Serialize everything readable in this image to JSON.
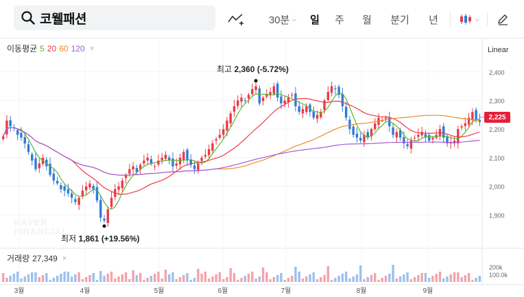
{
  "search": {
    "stock_name": "코웰패션"
  },
  "toolbar": {
    "period_select": "30분",
    "tabs": [
      {
        "label": "일",
        "active": true
      },
      {
        "label": "주",
        "active": false
      },
      {
        "label": "월",
        "active": false
      },
      {
        "label": "분기",
        "active": false
      },
      {
        "label": "년",
        "active": false
      }
    ]
  },
  "indicators": {
    "ma_label": "이동평균",
    "ma_periods": [
      {
        "label": "5",
        "color": "#5cb32f"
      },
      {
        "label": "20",
        "color": "#ea3b45"
      },
      {
        "label": "60",
        "color": "#f08a24"
      },
      {
        "label": "120",
        "color": "#a35ad8"
      }
    ],
    "close_symbol": "×"
  },
  "scale_mode": "Linear",
  "price_axis": {
    "ticks": [
      "2,400",
      "2,300",
      "2,200",
      "2,100",
      "2,000",
      "1,900"
    ]
  },
  "volume_axis": {
    "ticks": [
      "200k",
      "100.0k"
    ]
  },
  "current_price": "2,225",
  "annotations": {
    "high": {
      "label": "최고",
      "value": "2,360",
      "change": "(-5.72%)"
    },
    "low": {
      "label": "최저",
      "value": "1,861",
      "change": "(+19.56%)"
    }
  },
  "volume": {
    "label": "거래량",
    "value": "27,349"
  },
  "x_axis": {
    "months": [
      "3월",
      "4월",
      "5월",
      "6월",
      "7월",
      "8월",
      "9월"
    ]
  },
  "watermark": {
    "line1": "NAVER",
    "line2": "FINANCIAL"
  },
  "colors": {
    "up": "#ea3b45",
    "down": "#2f7bd8",
    "accent": "#e5203a"
  },
  "chart_data": {
    "type": "candlestick",
    "x_start": "2024-02-26",
    "ylim": [
      1800,
      2450
    ],
    "closes": [
      2175,
      2230,
      2210,
      2205,
      2180,
      2170,
      2150,
      2120,
      2090,
      2060,
      2080,
      2100,
      2070,
      2040,
      2020,
      2010,
      1990,
      1985,
      1975,
      1960,
      1945,
      1960,
      1985,
      2000,
      2010,
      1990,
      1950,
      1890,
      1880,
      1920,
      1960,
      1990,
      2000,
      2020,
      2040,
      2060,
      2070,
      2050,
      2075,
      2090,
      2100,
      2080,
      2070,
      2090,
      2100,
      2110,
      2090,
      2070,
      2080,
      2100,
      2120,
      2090,
      2075,
      2060,
      2080,
      2100,
      2110,
      2130,
      2150,
      2165,
      2180,
      2200,
      2230,
      2255,
      2280,
      2300,
      2310,
      2300,
      2320,
      2340,
      2350,
      2290,
      2310,
      2320,
      2330,
      2350,
      2310,
      2290,
      2300,
      2310,
      2320,
      2280,
      2260,
      2270,
      2280,
      2260,
      2240,
      2250,
      2260,
      2300,
      2330,
      2350,
      2340,
      2320,
      2280,
      2240,
      2200,
      2180,
      2170,
      2160,
      2180,
      2170,
      2200,
      2220,
      2240,
      2230,
      2240,
      2210,
      2180,
      2190,
      2170,
      2150,
      2140,
      2160,
      2170,
      2180,
      2190,
      2170,
      2160,
      2170,
      2180,
      2200,
      2170,
      2150,
      2155,
      2160,
      2200,
      2210,
      2220,
      2240,
      2260,
      2230,
      2225
    ]
  }
}
